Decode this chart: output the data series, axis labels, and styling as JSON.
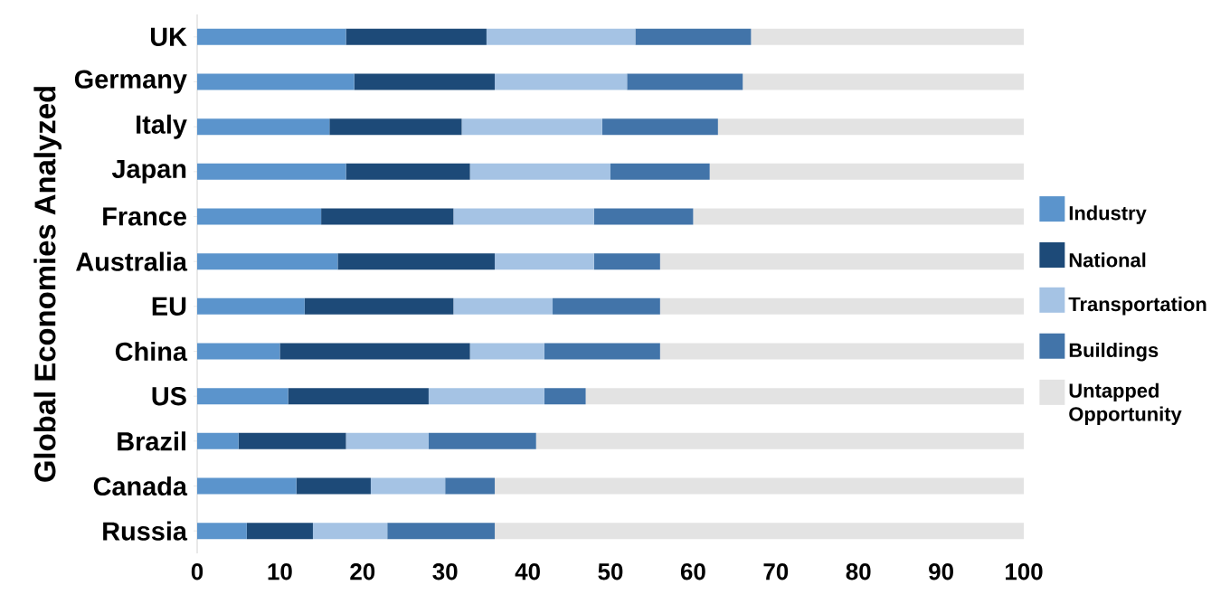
{
  "chart_data": {
    "type": "bar",
    "orientation": "horizontal",
    "stacked": true,
    "ylabel": "Global Economies Analyzed",
    "categories": [
      "UK",
      "Germany",
      "Italy",
      "Japan",
      "France",
      "Australia",
      "EU",
      "China",
      "US",
      "Brazil",
      "Canada",
      "Russia"
    ],
    "series": [
      {
        "name": "Industry",
        "color": "#5b94cc",
        "values": [
          18,
          19,
          16,
          18,
          15,
          17,
          13,
          10,
          11,
          5,
          12,
          6
        ]
      },
      {
        "name": "National",
        "color": "#1d4a78",
        "values": [
          17,
          17,
          16,
          15,
          16,
          19,
          18,
          23,
          17,
          13,
          9,
          8
        ]
      },
      {
        "name": "Transportation",
        "color": "#a5c3e4",
        "values": [
          18,
          16,
          17,
          17,
          17,
          12,
          12,
          9,
          14,
          10,
          9,
          9
        ]
      },
      {
        "name": "Buildings",
        "color": "#4274a9",
        "values": [
          14,
          14,
          14,
          12,
          12,
          8,
          13,
          14,
          5,
          13,
          6,
          13
        ]
      },
      {
        "name": "Untapped Opportunity",
        "color": "#e3e3e3",
        "values": [
          33,
          34,
          37,
          38,
          40,
          44,
          44,
          44,
          53,
          59,
          64,
          64
        ]
      }
    ],
    "xlim": [
      0,
      100
    ],
    "xticks": [
      0,
      10,
      20,
      30,
      40,
      50,
      60,
      70,
      80,
      90,
      100
    ],
    "legend": "right",
    "grid": false
  }
}
